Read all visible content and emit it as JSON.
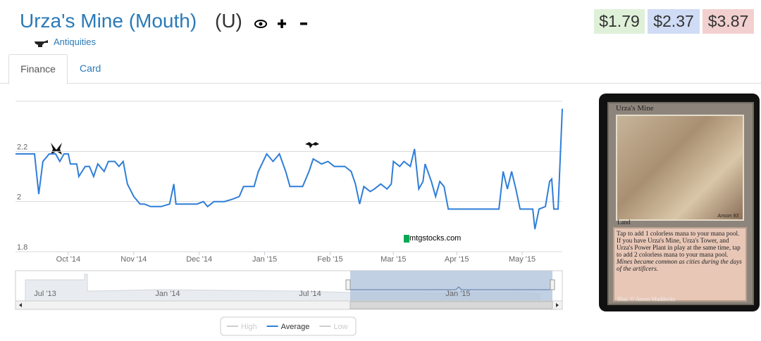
{
  "header": {
    "title": "Urza's Mine (Mouth)",
    "rarity": "(U)",
    "set": "Antiquities"
  },
  "prices": [
    "$1.79",
    "$2.37",
    "$3.87"
  ],
  "tabs": [
    "Finance",
    "Card"
  ],
  "chart_data": {
    "type": "line",
    "x": [
      0,
      9,
      11,
      13,
      16,
      19,
      21,
      23,
      25,
      26,
      29,
      30,
      33,
      35,
      37,
      39,
      42,
      44,
      47,
      49,
      51,
      53,
      56,
      59,
      61,
      64,
      69,
      73,
      75,
      76,
      81,
      86,
      89,
      91,
      94,
      99,
      103,
      106,
      108,
      113,
      115,
      119,
      122,
      125,
      128,
      130,
      133,
      136,
      139,
      141,
      145,
      148,
      151,
      156,
      159,
      161,
      163,
      165,
      168,
      170,
      173,
      176,
      178,
      179,
      182,
      184,
      187,
      189,
      191,
      193,
      194,
      197,
      199,
      201,
      203,
      205,
      209,
      213,
      218,
      219,
      223,
      226,
      229,
      231,
      233,
      235,
      237,
      239,
      243,
      245,
      246,
      248,
      251,
      253,
      254,
      255,
      257,
      259
    ],
    "series": [
      {
        "name": "Average",
        "color": "#2f7ed8",
        "values": [
          2.19,
          2.19,
          2.03,
          2.16,
          2.19,
          2.19,
          2.16,
          2.19,
          2.19,
          2.15,
          2.15,
          2.1,
          2.14,
          2.14,
          2.1,
          2.15,
          2.12,
          2.16,
          2.16,
          2.14,
          2.16,
          2.07,
          2.02,
          1.99,
          1.99,
          1.98,
          1.98,
          1.99,
          2.07,
          1.99,
          1.99,
          1.99,
          2.0,
          1.98,
          2.0,
          2.0,
          2.01,
          2.02,
          2.06,
          2.06,
          2.12,
          2.19,
          2.16,
          2.19,
          2.12,
          2.06,
          2.06,
          2.06,
          2.12,
          2.17,
          2.15,
          2.16,
          2.14,
          2.14,
          2.12,
          2.07,
          1.99,
          2.06,
          2.04,
          2.05,
          2.07,
          2.05,
          2.07,
          2.16,
          2.14,
          2.16,
          2.14,
          2.21,
          2.05,
          2.08,
          2.15,
          2.08,
          2.02,
          2.08,
          2.06,
          1.97,
          1.97,
          1.97,
          1.97,
          1.97,
          1.97,
          1.97,
          1.97,
          2.12,
          2.05,
          2.12,
          2.05,
          1.97,
          1.97,
          1.97,
          1.89,
          1.97,
          1.98,
          2.08,
          2.09,
          1.97,
          1.97,
          2.37
        ]
      }
    ],
    "legend": [
      {
        "name": "High",
        "visible": false
      },
      {
        "name": "Average",
        "visible": true
      },
      {
        "name": "Low",
        "visible": false
      }
    ],
    "xlim": [
      0,
      259
    ],
    "xticks": [
      {
        "value": 25,
        "label": "Oct '14"
      },
      {
        "value": 56,
        "label": "Nov '14"
      },
      {
        "value": 87,
        "label": "Dec '14"
      },
      {
        "value": 118,
        "label": "Jan '15"
      },
      {
        "value": 149,
        "label": "Feb '15"
      },
      {
        "value": 179,
        "label": "Mar '15"
      },
      {
        "value": 209,
        "label": "Apr '15"
      },
      {
        "value": 240,
        "label": "May '15"
      }
    ],
    "ylim": [
      1.8,
      2.4
    ],
    "yticks": [
      1.8,
      2,
      2.2
    ],
    "grid": true,
    "navigator_labels": [
      "Jul '13",
      "Jan '14",
      "Jul '14",
      "Jan '15"
    ],
    "watermark": "mtgstocks.com"
  },
  "card": {
    "name": "Urza's Mine",
    "type": "Land",
    "signature": "Anson 93",
    "rules": "Tap to add 1 colorless mana to your mana pool. If you have Urza's Mine, Urza's Tower, and Urza's Power Plant in play at the same time, tap to add 2 colorless mana to your mana pool.",
    "flavor": "Mines became common as cities during the days of the artificers.",
    "illus": "Illus. © Anson Maddocks"
  }
}
